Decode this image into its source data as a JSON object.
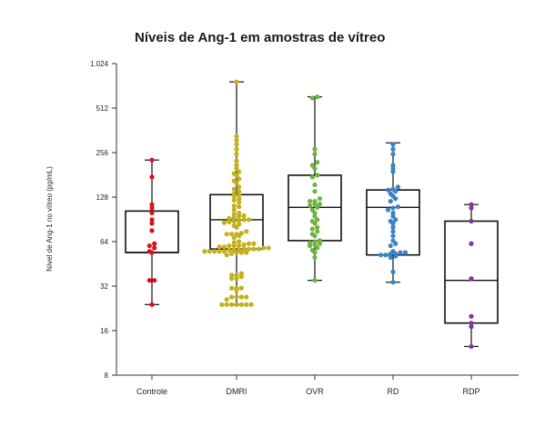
{
  "chart_data": {
    "type": "box-swarm",
    "title": "Níveis de Ang-1 em amostras de vítreo",
    "ylabel": "Nível de Ang-1 no vítreo (pg/mL)",
    "xlabel": "",
    "y_scale": "log2",
    "ylim": [
      8,
      1024
    ],
    "y_ticks": [
      8,
      16,
      32,
      64,
      128,
      256,
      512,
      1024
    ],
    "y_tick_labels": [
      "8",
      "16",
      "32",
      "64",
      "128",
      "256",
      "512",
      "1.024"
    ],
    "categories": [
      "Controle",
      "DMRI",
      "OVR",
      "RD",
      "RDP"
    ],
    "colors": {
      "Controle": "#e00d1f",
      "DMRI": "#c2b01c",
      "OVR": "#6db33f",
      "RD": "#3a82c4",
      "RDP": "#7a3a96"
    },
    "boxes": [
      {
        "name": "Controle",
        "whisker_low": 24,
        "q1": 54,
        "median": 54,
        "q3": 103,
        "whisker_high": 228
      },
      {
        "name": "DMRI",
        "whisker_low": 24,
        "q1": 57,
        "median": 90,
        "q3": 133,
        "whisker_high": 770
      },
      {
        "name": "OVR",
        "whisker_low": 35,
        "q1": 65,
        "median": 109,
        "q3": 180,
        "whisker_high": 610
      },
      {
        "name": "RD",
        "whisker_low": 34,
        "q1": 52,
        "median": 109,
        "q3": 143,
        "whisker_high": 298
      },
      {
        "name": "RDP",
        "whisker_low": 12.5,
        "q1": 18,
        "median": 35,
        "q3": 88,
        "whisker_high": 114
      }
    ],
    "series": [
      {
        "name": "Controle",
        "values": [
          24,
          35,
          35,
          54,
          55,
          58,
          60,
          62,
          76,
          85,
          90,
          100,
          108,
          114,
          175,
          228
        ]
      },
      {
        "name": "DMRI",
        "values": [
          24,
          24,
          24,
          24,
          24,
          24,
          24,
          26,
          27,
          27,
          27,
          27,
          30,
          31,
          31,
          31,
          36,
          36,
          37,
          38,
          38,
          39,
          52,
          53,
          54,
          54,
          54,
          55,
          55,
          55,
          55,
          55,
          56,
          56,
          56,
          57,
          57,
          57,
          57,
          58,
          58,
          59,
          59,
          60,
          60,
          60,
          61,
          62,
          62,
          63,
          64,
          68,
          70,
          72,
          72,
          72,
          73,
          75,
          80,
          82,
          84,
          86,
          87,
          88,
          89,
          90,
          90,
          92,
          93,
          95,
          96,
          98,
          100,
          105,
          110,
          112,
          118,
          122,
          125,
          130,
          132,
          135,
          140,
          145,
          150,
          160,
          165,
          170,
          180,
          185,
          190,
          200,
          210,
          225,
          250,
          270,
          290,
          310,
          330,
          770
        ]
      },
      {
        "name": "OVR",
        "values": [
          35,
          50,
          54,
          56,
          58,
          60,
          61,
          62,
          63,
          64,
          65,
          70,
          72,
          75,
          78,
          80,
          85,
          88,
          90,
          95,
          100,
          105,
          109,
          112,
          115,
          115,
          120,
          120,
          125,
          140,
          155,
          175,
          180,
          200,
          210,
          220,
          250,
          270,
          600,
          610
        ]
      },
      {
        "name": "RD",
        "values": [
          34,
          40,
          50,
          51,
          52,
          52,
          53,
          53,
          54,
          54,
          55,
          60,
          62,
          65,
          70,
          75,
          80,
          85,
          88,
          90,
          95,
          100,
          105,
          108,
          110,
          120,
          125,
          130,
          135,
          140,
          143,
          145,
          150,
          190,
          200,
          210,
          250,
          270,
          290
        ]
      },
      {
        "name": "RDP",
        "values": [
          12.5,
          17,
          18,
          20,
          36,
          62,
          88,
          108,
          114
        ]
      }
    ]
  }
}
